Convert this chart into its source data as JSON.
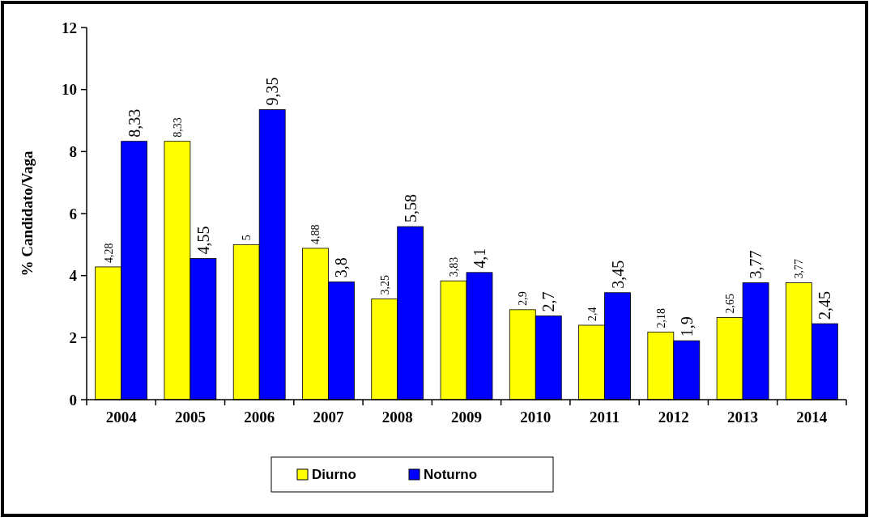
{
  "chart_data": {
    "type": "bar",
    "ylabel": "% Candidato/Vaga",
    "categories": [
      "2004",
      "2005",
      "2006",
      "2007",
      "2008",
      "2009",
      "2010",
      "2011",
      "2012",
      "2013",
      "2014"
    ],
    "series": [
      {
        "name": "Diurno",
        "color": "#ffff00",
        "values": [
          4.28,
          8.33,
          5,
          4.88,
          3.25,
          3.83,
          2.9,
          2.4,
          2.18,
          2.65,
          3.77
        ],
        "value_labels": [
          "4,28",
          "8,33",
          "5",
          "4,88",
          "3,25",
          "3,83",
          "2,9",
          "2,4",
          "2,18",
          "2,65",
          "3,77"
        ]
      },
      {
        "name": "Noturno",
        "color": "#0000ff",
        "values": [
          8.33,
          4.55,
          9.35,
          3.8,
          5.58,
          4.1,
          2.7,
          3.45,
          1.9,
          3.77,
          2.45
        ],
        "value_labels": [
          "8,33",
          "4,55",
          "9,35",
          "3,8",
          "5,58",
          "4,1",
          "2,7",
          "3,45",
          "1,9",
          "3,77",
          "2,45"
        ]
      }
    ],
    "ylim": [
      0,
      12
    ],
    "yticks": [
      0,
      2,
      4,
      6,
      8,
      10,
      12
    ],
    "legend": "bottom"
  }
}
